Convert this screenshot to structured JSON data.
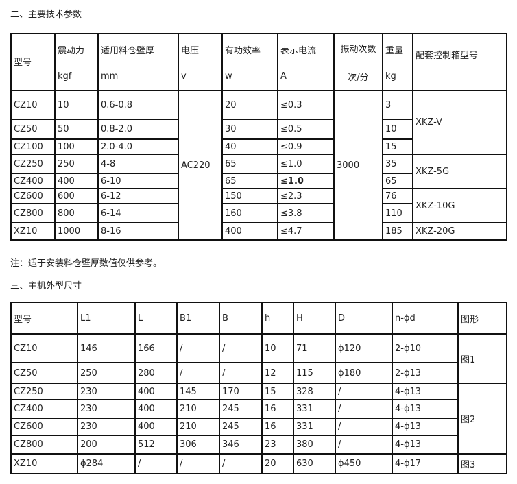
{
  "section2_title": "二、主要技术参数",
  "table1": {
    "headers": [
      [
        "型号",
        ""
      ],
      [
        "震动力",
        "kgf"
      ],
      [
        "适用料仓壁厚",
        "mm"
      ],
      [
        "电压",
        "v"
      ],
      [
        "有功效率",
        "w"
      ],
      [
        "表示电流",
        "A"
      ],
      [
        "振动次数",
        "次/分"
      ],
      [
        "重量",
        "kg"
      ],
      [
        "配套控制箱型号",
        ""
      ]
    ],
    "rows": [
      {
        "model": "CZ10",
        "force": "10",
        "thick": "0.6-0.8",
        "power": "20",
        "current": "≤0.3",
        "weight": "3"
      },
      {
        "model": "CZ50",
        "force": "50",
        "thick": "0.8-2.0",
        "power": "30",
        "current": "≤0.5",
        "weight": "10"
      },
      {
        "model": "CZ100",
        "force": "100",
        "thick": "2.0-4.0",
        "power": "40",
        "current": "≤0.9",
        "weight": "15"
      },
      {
        "model": "CZ250",
        "force": "250",
        "thick": "4-8",
        "power": "65",
        "current": "≤1.0",
        "weight": "35"
      },
      {
        "model": "CZ400",
        "force": "400",
        "thick": "6-10",
        "power": "65",
        "current": "≤1.0",
        "weight": "65"
      },
      {
        "model": "CZ600",
        "force": "600",
        "thick": "6-12",
        "power": "150",
        "current": "≤2.3",
        "weight": "76"
      },
      {
        "model": "CZ800",
        "force": "800",
        "thick": "6-14",
        "power": "160",
        "current": "≤3.8",
        "weight": "110"
      },
      {
        "model": "XZ10",
        "force": "1000",
        "thick": "8-16",
        "power": "400",
        "current": "≤4.7",
        "weight": "185"
      }
    ],
    "voltage": "AC220",
    "frequency": "3000",
    "boxes": [
      "XKZ-V",
      "XKZ-5G",
      "XKZ-10G",
      "XKZ-20G"
    ]
  },
  "note": "注：适于安装料仓壁厚数值仅供参考。",
  "section3_title": "三、主机外型尺寸",
  "table2": {
    "headers": [
      "型号",
      "L1",
      "L",
      "B1",
      "B",
      "h",
      "H",
      "D",
      "n-ϕd",
      "图形"
    ],
    "rows": [
      [
        "CZ10",
        "146",
        "166",
        "/",
        "/",
        "10",
        "71",
        "ϕ120",
        "2-ϕ10"
      ],
      [
        "CZ50",
        "250",
        "280",
        "/",
        "/",
        "12",
        "115",
        "ϕ180",
        "2-ϕ13"
      ],
      [
        "CZ250",
        "230",
        "400",
        "145",
        "170",
        "15",
        "328",
        "/",
        "4-ϕ13"
      ],
      [
        "CZ400",
        "230",
        "400",
        "210",
        "245",
        "16",
        "331",
        "/",
        "4-ϕ13"
      ],
      [
        "CZ600",
        "230",
        "400",
        "210",
        "245",
        "16",
        "331",
        "/",
        "4-ϕ13"
      ],
      [
        "CZ800",
        "200",
        "512",
        "306",
        "346",
        "23",
        "380",
        "/",
        "4-ϕ13"
      ],
      [
        "XZ10",
        "ϕ284",
        "/",
        "/",
        "/",
        "20",
        "630",
        "ϕ450",
        "4-ϕ17"
      ]
    ],
    "figures": [
      "图1",
      "图2",
      "图3"
    ]
  }
}
